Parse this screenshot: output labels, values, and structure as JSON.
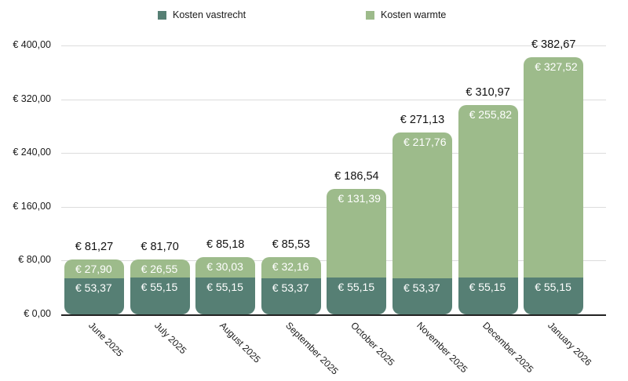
{
  "chart_data": {
    "type": "bar",
    "stacked": true,
    "title": "",
    "xlabel": "",
    "ylabel": "",
    "ylim": [
      0,
      400
    ],
    "y_ticks": [
      "€ 0,00",
      "€ 80,00",
      "€ 160,00",
      "€ 240,00",
      "€ 320,00",
      "€ 400,00"
    ],
    "y_tick_values": [
      0,
      80,
      160,
      240,
      320,
      400
    ],
    "grid": true,
    "legend_position": "top",
    "categories": [
      "June 2025",
      "July 2025",
      "August 2025",
      "September 2025",
      "October 2025",
      "November 2025",
      "December 2025",
      "January 2026"
    ],
    "series": [
      {
        "name": "Kosten vastrecht",
        "color": "#567f74",
        "values": [
          53.37,
          55.15,
          55.15,
          53.37,
          55.15,
          53.37,
          55.15,
          55.15
        ],
        "labels": [
          "€ 53,37",
          "€ 55,15",
          "€ 55,15",
          "€ 53,37",
          "€ 55,15",
          "€ 53,37",
          "€ 55,15",
          "€ 55,15"
        ]
      },
      {
        "name": "Kosten warmte",
        "color": "#9dbb8b",
        "values": [
          27.9,
          26.55,
          30.03,
          32.16,
          131.39,
          217.76,
          255.82,
          327.52
        ],
        "labels": [
          "€ 27,90",
          "€ 26,55",
          "€ 30,03",
          "€ 32,16",
          "€ 131,39",
          "€ 217,76",
          "€ 255,82",
          "€ 327,52"
        ]
      }
    ],
    "totals": [
      81.27,
      81.7,
      85.18,
      85.53,
      186.54,
      271.13,
      310.97,
      382.67
    ],
    "total_labels": [
      "€ 81,27",
      "€ 81,70",
      "€ 85,18",
      "€ 85,53",
      "€ 186,54",
      "€ 271,13",
      "€ 310,97",
      "€ 382,67"
    ]
  },
  "legend": {
    "items": [
      {
        "label": "Kosten vastrecht",
        "color": "#567f74"
      },
      {
        "label": "Kosten warmte",
        "color": "#9dbb8b"
      }
    ]
  }
}
